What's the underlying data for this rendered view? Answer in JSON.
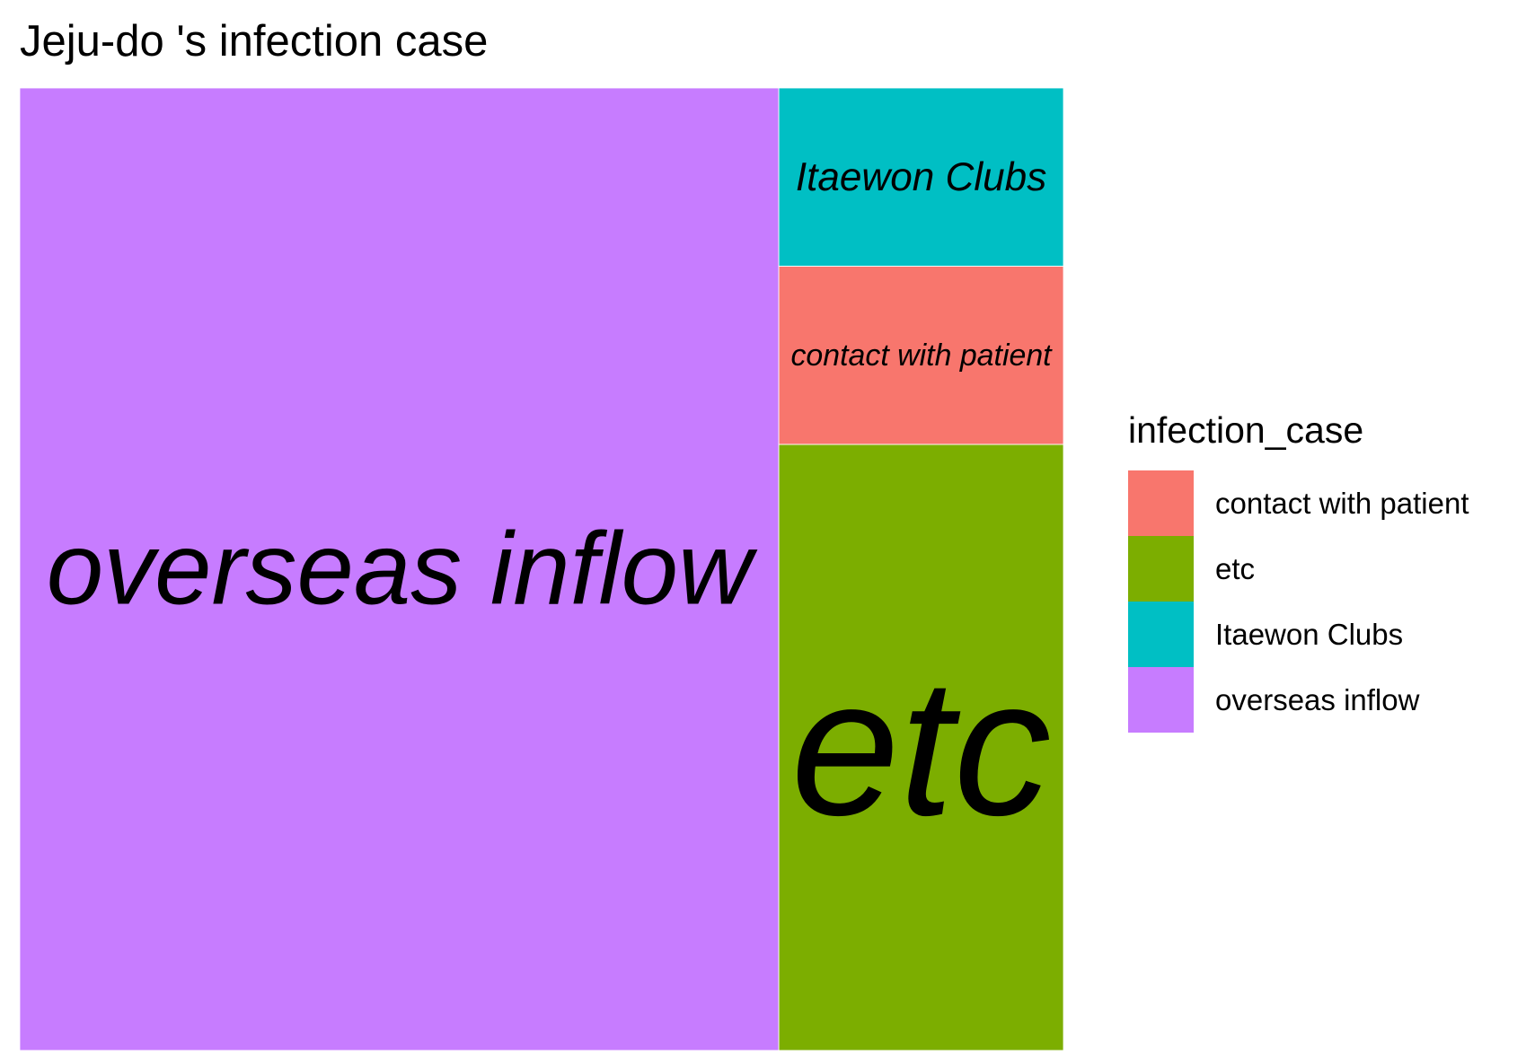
{
  "chart_data": {
    "type": "treemap",
    "title": "Jeju-do 's infection case",
    "legend": {
      "title": "infection_case",
      "position": "right",
      "entries": [
        {
          "label": "contact with patient",
          "color": "#F8766D"
        },
        {
          "label": "etc",
          "color": "#7CAE00"
        },
        {
          "label": "Itaewon Clubs",
          "color": "#00BFC4"
        },
        {
          "label": "overseas inflow",
          "color": "#C77CFF"
        }
      ]
    },
    "categories": [
      "overseas inflow",
      "etc",
      "contact with patient",
      "Itaewon Clubs"
    ],
    "values": [
      72,
      17,
      5,
      5
    ],
    "colors": [
      "#C77CFF",
      "#7CAE00",
      "#F8766D",
      "#00BFC4"
    ]
  }
}
